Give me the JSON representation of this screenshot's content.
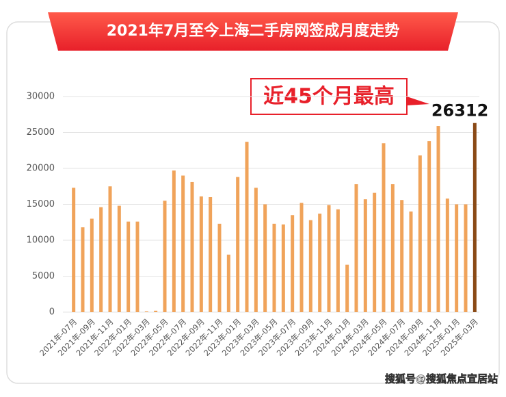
{
  "chart_data": {
    "type": "bar",
    "title": "2021年7月至今上海二手房网签成月度走势",
    "annotation": "近45个月最高",
    "categories": [
      "2021年-07月",
      null,
      "2021年-09月",
      null,
      "2021年-11月",
      null,
      "2022年-01月",
      null,
      "2022年-03月",
      null,
      "2022年-05月",
      null,
      "2022年-07月",
      null,
      "2022年-09月",
      null,
      "2022年-11月",
      null,
      "2023年-01月",
      null,
      "2023年-03月",
      null,
      "2023年-05月",
      null,
      "2023年-07月",
      null,
      "2023年-09月",
      null,
      "2023年-11月",
      null,
      "2024年-01月",
      null,
      "2024年-03月",
      null,
      "2024年-05月",
      null,
      "2024年-07月",
      null,
      "2024年-09月",
      null,
      "2024年-11月",
      null,
      "2025年-01月",
      null,
      "2025年-03月"
    ],
    "values": [
      17300,
      11800,
      13000,
      14600,
      17500,
      14800,
      12600,
      12600,
      100,
      200,
      15500,
      19700,
      19000,
      18100,
      16100,
      16000,
      12300,
      8000,
      18800,
      23700,
      17300,
      15000,
      12300,
      12200,
      13500,
      15200,
      12800,
      13700,
      14900,
      14300,
      6600,
      17800,
      15700,
      16600,
      23500,
      17800,
      15600,
      14000,
      21800,
      23800,
      25900,
      15800,
      15000,
      15000,
      26312
    ],
    "color": "#f0a35a",
    "highlight_color": "#8a4a16",
    "ylim": [
      0,
      30000
    ],
    "yticks": [
      0,
      5000,
      10000,
      15000,
      20000,
      25000,
      30000
    ],
    "grid": true
  },
  "watermark": "搜狐号@搜狐焦点宜居站"
}
